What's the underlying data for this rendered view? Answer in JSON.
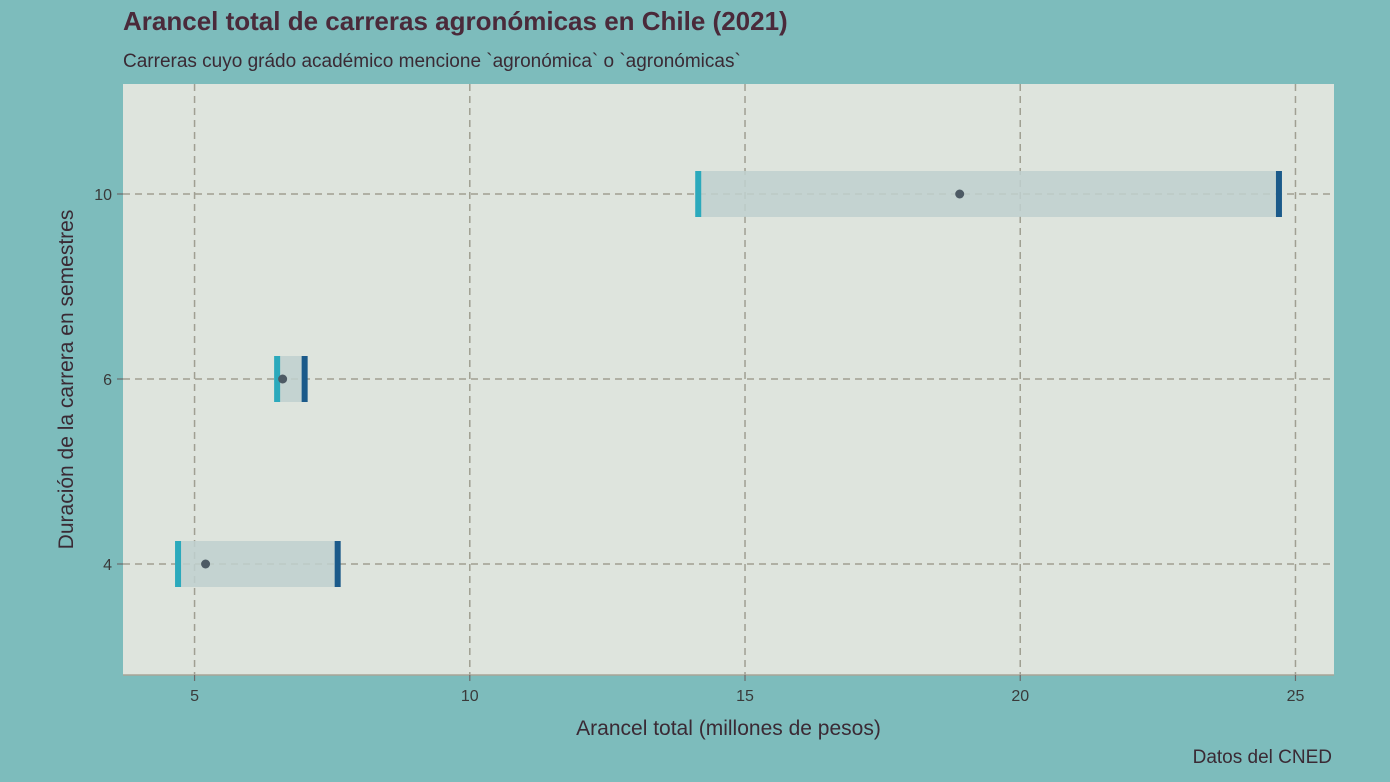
{
  "chart_data": {
    "type": "range",
    "title": "Arancel total de carreras agronómicas en Chile (2021)",
    "subtitle": "Carreras cuyo grádo académico mencione `agronómica` o `agronómicas`",
    "xlabel": "Arancel total (millones de pesos)",
    "ylabel": "Duración de la carrera en semestres",
    "caption": "Datos del CNED",
    "xlim": [
      3.7,
      25.7
    ],
    "x_ticks": [
      5,
      10,
      15,
      20,
      25
    ],
    "y_categories": [
      "4",
      "6",
      "10"
    ],
    "grid": true,
    "rows": [
      {
        "semestres": "4",
        "min": 4.7,
        "max": 7.6,
        "mean": 5.2
      },
      {
        "semestres": "6",
        "min": 6.5,
        "max": 7.0,
        "mean": 6.6
      },
      {
        "semestres": "10",
        "min": 14.15,
        "max": 24.7,
        "mean": 18.9
      }
    ],
    "colors": {
      "background": "#7dbcbc",
      "panel": "#dee4dd",
      "grid": "#a09f92",
      "range_fill": "#c0d0cf",
      "min_marker": "#2ba9bc",
      "max_marker": "#1b5a8a",
      "mean_point": "#4d5a64"
    }
  }
}
